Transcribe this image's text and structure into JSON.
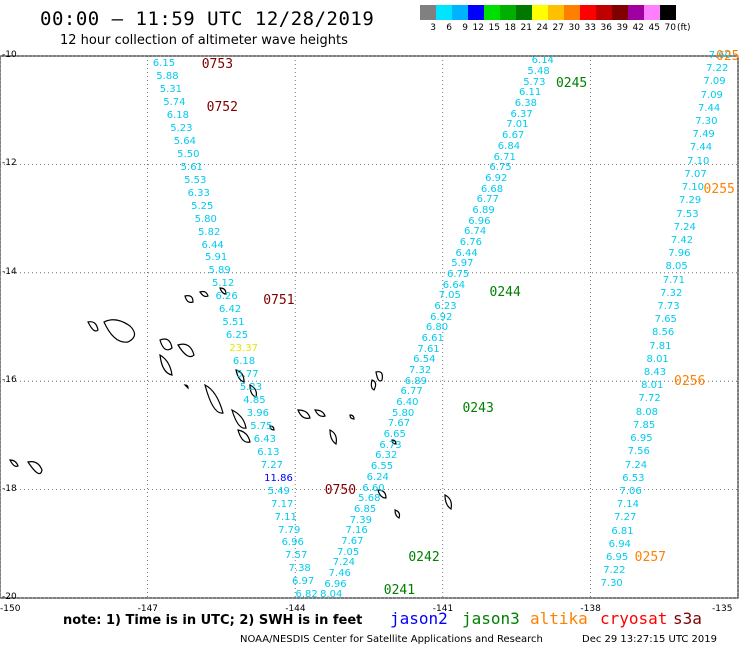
{
  "header": {
    "title": "00:00 – 11:59 UTC 12/28/2019",
    "subtitle": "12 hour collection of altimeter wave heights"
  },
  "scale": {
    "unit": "(ft)",
    "bins": [
      {
        "label": "3",
        "color": "#808080"
      },
      {
        "label": "6",
        "color": "#00e5ff"
      },
      {
        "label": "9",
        "color": "#00b3ff"
      },
      {
        "label": "12",
        "color": "#0000ff"
      },
      {
        "label": "15",
        "color": "#00e000"
      },
      {
        "label": "18",
        "color": "#00b000"
      },
      {
        "label": "21",
        "color": "#007800"
      },
      {
        "label": "24",
        "color": "#ffff00"
      },
      {
        "label": "27",
        "color": "#ffc000"
      },
      {
        "label": "30",
        "color": "#ff8000"
      },
      {
        "label": "33",
        "color": "#ff0000"
      },
      {
        "label": "36",
        "color": "#c00000"
      },
      {
        "label": "39",
        "color": "#800000"
      },
      {
        "label": "42",
        "color": "#a000a0"
      },
      {
        "label": "45",
        "color": "#ff80ff"
      },
      {
        "label": "70",
        "color": "#000000"
      }
    ]
  },
  "axes": {
    "lat_labels": [
      {
        "value": -10,
        "text": "-10"
      },
      {
        "value": -12,
        "text": "-12"
      },
      {
        "value": -14,
        "text": "-14"
      },
      {
        "value": -16,
        "text": "-16"
      },
      {
        "value": -18,
        "text": "-18"
      },
      {
        "value": -20,
        "text": "-20"
      }
    ],
    "lon_labels": [
      {
        "value": -150,
        "text": "-150"
      },
      {
        "value": -147,
        "text": "-147"
      },
      {
        "value": -144,
        "text": "-144"
      },
      {
        "value": -141,
        "text": "-141"
      },
      {
        "value": -138,
        "text": "-138"
      },
      {
        "value": -135,
        "text": "-135"
      }
    ]
  },
  "tracks": [
    {
      "id": "track-a",
      "start_lon": -146.65,
      "end_lon": -143.75,
      "start_lat": -10.15,
      "end_lat": -19.95,
      "color": "#00ccee",
      "values": [
        "6.15",
        "5.88",
        "5.31",
        "5.74",
        "6.18",
        "5.23",
        "5.64",
        "5.50",
        "5.61",
        "5.53",
        "6.33",
        "5.25",
        "5.80",
        "5.82",
        "6.44",
        "5.91",
        "5.89",
        "5.12",
        "6.26",
        "6.42",
        "5.51",
        "6.25",
        "23.37",
        "6.18",
        "5.77",
        "5.23",
        "4.85",
        "3.96",
        "5.75",
        "6.43",
        "6.13",
        "7.27",
        "11.86",
        "5.49",
        "7.17",
        "7.11",
        "7.79",
        "6.96",
        "7.57",
        "7.38",
        "6.97",
        "6.82"
      ],
      "highlight": {
        "22": "#e6e600",
        "32": "#0000ff"
      }
    },
    {
      "id": "track-b",
      "start_lon": -138.95,
      "end_lon": -143.25,
      "start_lat": -10.1,
      "end_lat": -19.95,
      "color": "#00ccee",
      "values": [
        "6.14",
        "5.48",
        "5.73",
        "6.11",
        "6.38",
        "6.37",
        "7.01",
        "6.67",
        "6.84",
        "6.71",
        "6.75",
        "6.92",
        "6.68",
        "6.77",
        "6.89",
        "6.96",
        "6.74",
        "6.76",
        "6.44",
        "5.97",
        "6.75",
        "6.64",
        "7.05",
        "6.23",
        "6.92",
        "6.80",
        "6.61",
        "7.61",
        "6.54",
        "7.32",
        "6.89",
        "6.77",
        "6.40",
        "5.80",
        "7.67",
        "6.65",
        "6.73",
        "6.32",
        "6.55",
        "6.24",
        "6.60",
        "5.68",
        "6.85",
        "7.39",
        "7.16",
        "7.67",
        "7.05",
        "7.24",
        "7.46",
        "6.96",
        "8.04"
      ]
    },
    {
      "id": "track-c",
      "start_lon": -135.35,
      "end_lon": -137.55,
      "start_lat": -10.0,
      "end_lat": -19.75,
      "color": "#00ccee",
      "values": [
        "7.60",
        "7.22",
        "7.09",
        "7.09",
        "7.44",
        "7.30",
        "7.49",
        "7.44",
        "7.10",
        "7.07",
        "7.10",
        "7.29",
        "7.53",
        "7.24",
        "7.42",
        "7.96",
        "8.05",
        "7.71",
        "7.32",
        "7.73",
        "7.65",
        "8.56",
        "7.81",
        "8.01",
        "8.43",
        "8.01",
        "7.72",
        "8.08",
        "7.85",
        "6.95",
        "7.56",
        "7.24",
        "6.53",
        "7.06",
        "7.14",
        "7.27",
        "6.81",
        "6.94",
        "6.95",
        "7.22",
        "7.30"
      ]
    }
  ],
  "time_labels": [
    {
      "text": "0753",
      "color": "#800000",
      "lon": -145.9,
      "lat": -10.15
    },
    {
      "text": "0752",
      "color": "#800000",
      "lon": -145.8,
      "lat": -10.95
    },
    {
      "text": "0751",
      "color": "#800000",
      "lon": -144.65,
      "lat": -14.5
    },
    {
      "text": "0750",
      "color": "#800000",
      "lon": -143.4,
      "lat": -18.0
    },
    {
      "text": "0245",
      "color": "#008000",
      "lon": -138.7,
      "lat": -10.5
    },
    {
      "text": "0244",
      "color": "#008000",
      "lon": -140.05,
      "lat": -14.35
    },
    {
      "text": "0243",
      "color": "#008000",
      "lon": -140.6,
      "lat": -16.5
    },
    {
      "text": "0242",
      "color": "#008000",
      "lon": -141.7,
      "lat": -19.25
    },
    {
      "text": "0241",
      "color": "#008000",
      "lon": -142.2,
      "lat": -19.85
    },
    {
      "text": "0255",
      "color": "#ff8000",
      "lon": -135.7,
      "lat": -12.45
    },
    {
      "text": "0256",
      "color": "#ff8000",
      "lon": -136.3,
      "lat": -16.0
    },
    {
      "text": "0257",
      "color": "#ff8000",
      "lon": -137.1,
      "lat": -19.25
    },
    {
      "text": "025",
      "color": "#ff8000",
      "lon": -134.65,
      "lat": -10.0
    }
  ],
  "note": "note: 1) Time is in UTC; 2) SWH is in feet",
  "satellites": [
    {
      "name": "jason2",
      "color": "#0000ff"
    },
    {
      "name": "jason3",
      "color": "#008000"
    },
    {
      "name": "altika",
      "color": "#ff8000"
    },
    {
      "name": "cryosat",
      "color": "#ff0000"
    },
    {
      "name": "s3a",
      "color": "#800000"
    }
  ],
  "footer": {
    "credit": "NOAA/NESDIS Center for Satellite Applications and Research",
    "timestamp": "Dec 29 13:27:15 UTC 2019"
  }
}
